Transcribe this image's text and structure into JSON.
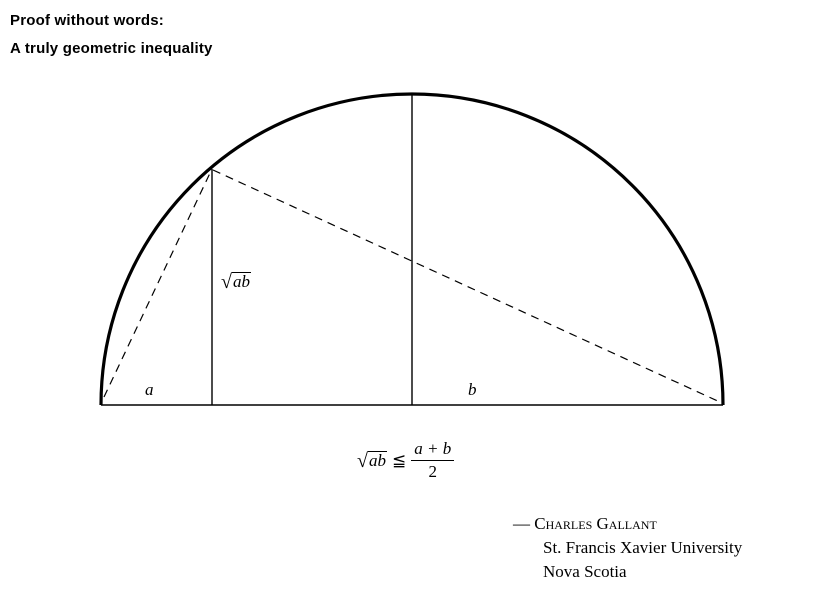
{
  "header": {
    "title_line1": "Proof without words:",
    "title_line2": "A truly geometric inequality"
  },
  "figure": {
    "label_a": "a",
    "label_b": "b",
    "label_sqrt_radicand": "ab"
  },
  "formula": {
    "lhs_radicand": "ab",
    "relation": "≦",
    "numerator": "a + b",
    "denominator": "2"
  },
  "credit": {
    "author": "— Charles Gallant",
    "affiliation": "St. Francis Xavier University",
    "location": "Nova Scotia"
  }
}
